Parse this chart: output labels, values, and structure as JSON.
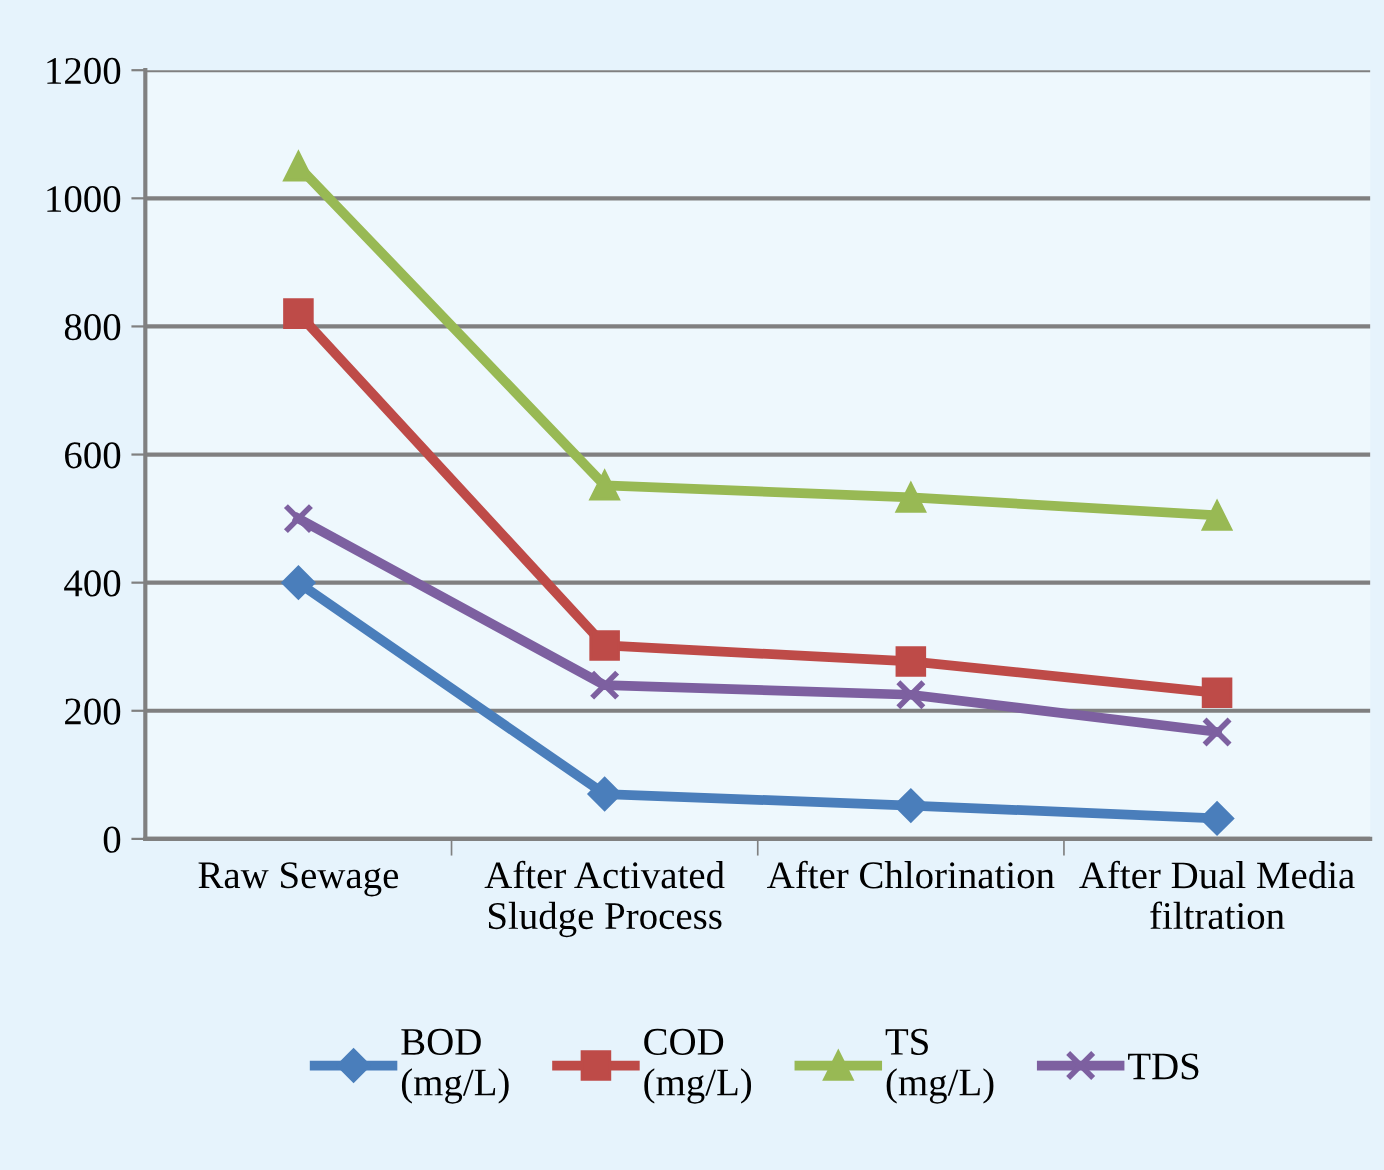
{
  "chart_data": {
    "type": "line",
    "categories": [
      "Raw Sewage",
      "After Activated\nSludge Process",
      "After Chlorination",
      "After Dual Media\nfiltration"
    ],
    "series": [
      {
        "name": "BOD\n(mg/L)",
        "color": "#4a7ebb",
        "marker": "diamond",
        "values": [
          400,
          70,
          52,
          32
        ]
      },
      {
        "name": "COD\n(mg/L)",
        "color": "#be4b48",
        "marker": "square",
        "values": [
          820,
          302,
          277,
          228
        ]
      },
      {
        "name": "TS\n(mg/L)",
        "color": "#98b954",
        "marker": "triangle",
        "values": [
          1050,
          552,
          533,
          505
        ]
      },
      {
        "name": "TDS",
        "color": "#7d60a0",
        "marker": "cross",
        "values": [
          500,
          240,
          225,
          167
        ]
      }
    ],
    "ylim": [
      0,
      1200
    ],
    "yticks": [
      0,
      200,
      400,
      600,
      800,
      1000,
      1200
    ],
    "grid": "y",
    "legend": "bottom",
    "line_style": "solid"
  }
}
